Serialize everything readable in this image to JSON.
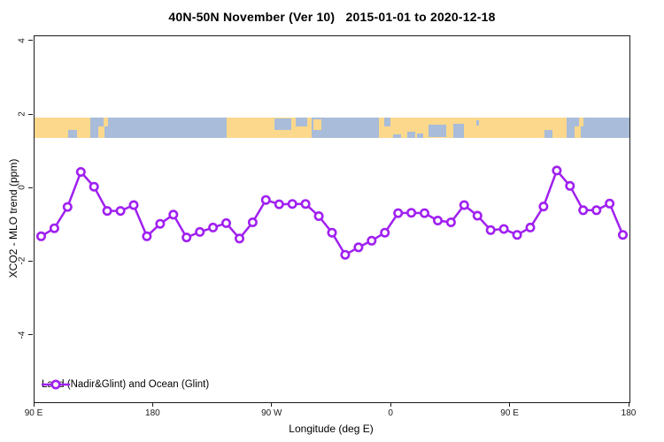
{
  "chart_data": {
    "type": "line",
    "title": "40N-50N November (Ver 10)   2015-01-01 to 2020-12-18",
    "xlabel": "Longitude (deg E)",
    "ylabel": "XCO2 - MLO trend (ppm)",
    "xlim": [
      90,
      540
    ],
    "ylim": [
      -5.81,
      4.14
    ],
    "grid": false,
    "x_ticks": [
      {
        "value": 90,
        "label": "90 E"
      },
      {
        "value": 180,
        "label": "180"
      },
      {
        "value": 270,
        "label": "90 W"
      },
      {
        "value": 360,
        "label": "0"
      },
      {
        "value": 450,
        "label": "90 E"
      },
      {
        "value": 540,
        "label": "180"
      }
    ],
    "y_ticks": [
      {
        "value": 4,
        "label": "4"
      },
      {
        "value": 2,
        "label": "2"
      },
      {
        "value": 0,
        "label": "0"
      },
      {
        "value": -2,
        "label": "-2"
      },
      {
        "value": -4,
        "label": "-4"
      }
    ],
    "legend": {
      "position": "bottom-left",
      "entries": [
        {
          "label": "Land (Nadir&Glint) and Ocean (Glint)",
          "color": "#A020F0",
          "marker": "open-circle"
        }
      ]
    },
    "series": [
      {
        "name": "Land (Nadir&Glint) and Ocean (Glint)",
        "color": "#A020F0",
        "marker": "open-circle",
        "x": [
          95,
          105,
          115,
          125,
          135,
          145,
          155,
          165,
          175,
          185,
          195,
          205,
          215,
          225,
          235,
          245,
          255,
          265,
          275,
          285,
          295,
          305,
          315,
          325,
          335,
          345,
          355,
          365,
          375,
          385,
          395,
          405,
          415,
          425,
          435,
          445,
          455,
          465,
          475,
          485,
          495,
          505,
          515,
          525,
          535
        ],
        "y": [
          -1.3,
          -1.08,
          -0.5,
          0.45,
          0.05,
          -0.61,
          -0.61,
          -0.45,
          -1.3,
          -0.96,
          -0.71,
          -1.33,
          -1.18,
          -1.06,
          -0.94,
          -1.36,
          -0.92,
          -0.31,
          -0.43,
          -0.42,
          -0.42,
          -0.75,
          -1.2,
          -1.8,
          -1.6,
          -1.42,
          -1.2,
          -0.67,
          -0.66,
          -0.67,
          -0.87,
          -0.92,
          -0.45,
          -0.74,
          -1.13,
          -1.1,
          -1.26,
          -1.06,
          -0.49,
          0.49,
          0.07,
          -0.59,
          -0.59,
          -0.41,
          -1.26
        ]
      }
    ],
    "map_strip": {
      "description": "latitude-band world map 40N-50N drawn across plot",
      "value_range": [
        1.38,
        1.93
      ],
      "ocean_color": "#A9BCD9",
      "land_color": "#FBD88C",
      "base": "ocean",
      "patches": [
        {
          "type": "land",
          "lon": [
            90,
            132
          ],
          "y": [
            0,
            1
          ]
        },
        {
          "type": "land",
          "lon": [
            138.5,
            143
          ],
          "y": [
            0.42,
            1
          ]
        },
        {
          "type": "land",
          "lon": [
            142,
            145.5
          ],
          "y": [
            0,
            0.42
          ]
        },
        {
          "type": "land",
          "lon": [
            235.5,
            299.5
          ],
          "y": [
            0,
            1
          ]
        },
        {
          "type": "land",
          "lon": [
            301,
            307
          ],
          "y": [
            0.1,
            0.6
          ]
        },
        {
          "type": "land",
          "lon": [
            350.5,
            492.5
          ],
          "y": [
            0,
            1
          ]
        },
        {
          "type": "land",
          "lon": [
            498.5,
            503
          ],
          "y": [
            0.42,
            1
          ]
        },
        {
          "type": "land",
          "lon": [
            502,
            505.5
          ],
          "y": [
            0,
            0.42
          ]
        },
        {
          "type": "ocean",
          "lon": [
            115.5,
            122
          ],
          "y": [
            0.6,
            1
          ]
        },
        {
          "type": "ocean",
          "lon": [
            271.5,
            284.5
          ],
          "y": [
            0.05,
            0.6
          ]
        },
        {
          "type": "ocean",
          "lon": [
            287.5,
            296
          ],
          "y": [
            0,
            0.45
          ]
        },
        {
          "type": "ocean",
          "lon": [
            354.5,
            359.5
          ],
          "y": [
            0,
            0.45
          ]
        },
        {
          "type": "ocean",
          "lon": [
            361,
            367
          ],
          "y": [
            0.82,
            1
          ]
        },
        {
          "type": "ocean",
          "lon": [
            372,
            378
          ],
          "y": [
            0.72,
            1
          ]
        },
        {
          "type": "ocean",
          "lon": [
            379,
            384
          ],
          "y": [
            0.8,
            1
          ]
        },
        {
          "type": "ocean",
          "lon": [
            388,
            401.5
          ],
          "y": [
            0.35,
            0.95
          ]
        },
        {
          "type": "ocean",
          "lon": [
            407,
            414.5
          ],
          "y": [
            0.3,
            1
          ]
        },
        {
          "type": "ocean",
          "lon": [
            424,
            426
          ],
          "y": [
            0.15,
            0.4
          ]
        },
        {
          "type": "ocean",
          "lon": [
            475.5,
            482
          ],
          "y": [
            0.6,
            1
          ]
        }
      ]
    }
  },
  "colors": {
    "line": "#A020F0",
    "marker_fill": "#ffffff",
    "axis": "#1b1b1b",
    "land": "#FBD88C",
    "ocean": "#A9BCD9",
    "background": "#ffffff"
  }
}
